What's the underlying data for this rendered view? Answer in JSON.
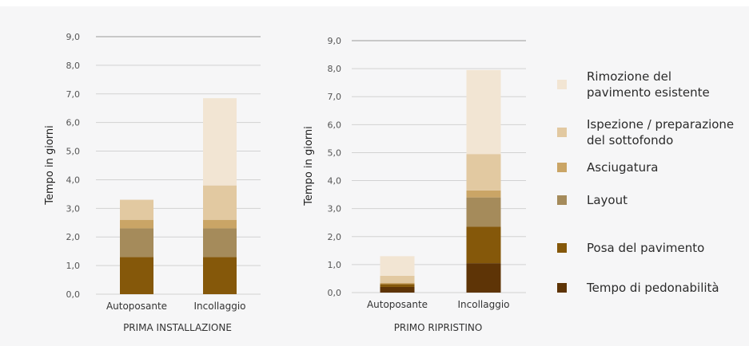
{
  "colors": {
    "background": "#f6f6f7",
    "rimozione": "#f2e5d3",
    "ispezione": "#e2c9a1",
    "asciugatura": "#caa566",
    "layout": "#a58b5b",
    "posa": "#85580a",
    "pedonabilita": "#5e3406"
  },
  "legend": [
    {
      "label": "Rimozione del pavimento esistente",
      "lines": [
        "Rimozione del",
        "pavimento esistente"
      ],
      "color": "#f2e5d3"
    },
    {
      "label": "Ispezione / preparazione del sottofondo",
      "lines": [
        "Ispezione / preparazione",
        "del sottofondo"
      ],
      "color": "#e2c9a1"
    },
    {
      "label": "Asciugatura",
      "lines": [
        "Asciugatura"
      ],
      "color": "#caa566"
    },
    {
      "label": "Layout",
      "lines": [
        "Layout"
      ],
      "color": "#a58b5b"
    },
    {
      "label": "Posa del pavimento",
      "lines": [
        "Posa del pavimento"
      ],
      "color": "#85580a"
    },
    {
      "label": "Tempo di pedonabilità",
      "lines": [
        "Tempo di pedonabilità"
      ],
      "color": "#5e3406"
    }
  ],
  "chart_data": [
    {
      "type": "bar",
      "stacked": true,
      "subtitle": "PRIMA INSTALLAZIONE",
      "ylabel": "Tempo in giorni",
      "ylim": [
        0,
        9
      ],
      "yticks": [
        "0,0",
        "1,0",
        "2,0",
        "3,0",
        "4,0",
        "5,0",
        "6,0",
        "7,0",
        "8,0",
        "9,0"
      ],
      "categories": [
        "Autoposante",
        "Incollaggio"
      ],
      "series": [
        {
          "name": "Tempo di pedonabilità",
          "values": [
            0,
            0
          ]
        },
        {
          "name": "Posa del pavimento",
          "values": [
            1.3,
            1.3
          ]
        },
        {
          "name": "Layout",
          "values": [
            1.0,
            1.0
          ]
        },
        {
          "name": "Asciugatura",
          "values": [
            0.3,
            0.3
          ]
        },
        {
          "name": "Ispezione / preparazione del sottofondo",
          "values": [
            0.7,
            1.2
          ]
        },
        {
          "name": "Rimozione del pavimento esistente",
          "values": [
            0,
            3.05
          ]
        }
      ]
    },
    {
      "type": "bar",
      "stacked": true,
      "subtitle": "PRIMO RIPRISTINO",
      "ylabel": "Tempo in giorni",
      "ylim": [
        0,
        9
      ],
      "yticks": [
        "0,0",
        "1,0",
        "2,0",
        "3,0",
        "4,0",
        "5,0",
        "6,0",
        "7,0",
        "8,0",
        "9,0"
      ],
      "categories": [
        "Autoposante",
        "Incollaggio"
      ],
      "series": [
        {
          "name": "Tempo di pedonabilità",
          "values": [
            0.2,
            1.05
          ]
        },
        {
          "name": "Posa del pavimento",
          "values": [
            0.1,
            1.3
          ]
        },
        {
          "name": "Layout",
          "values": [
            0,
            1.05
          ]
        },
        {
          "name": "Asciugatura",
          "values": [
            0.05,
            0.25
          ]
        },
        {
          "name": "Ispezione / preparazione del sottofondo",
          "values": [
            0.25,
            1.3
          ]
        },
        {
          "name": "Rimozione del pavimento esistente",
          "values": [
            0.7,
            3.0
          ]
        }
      ]
    }
  ]
}
